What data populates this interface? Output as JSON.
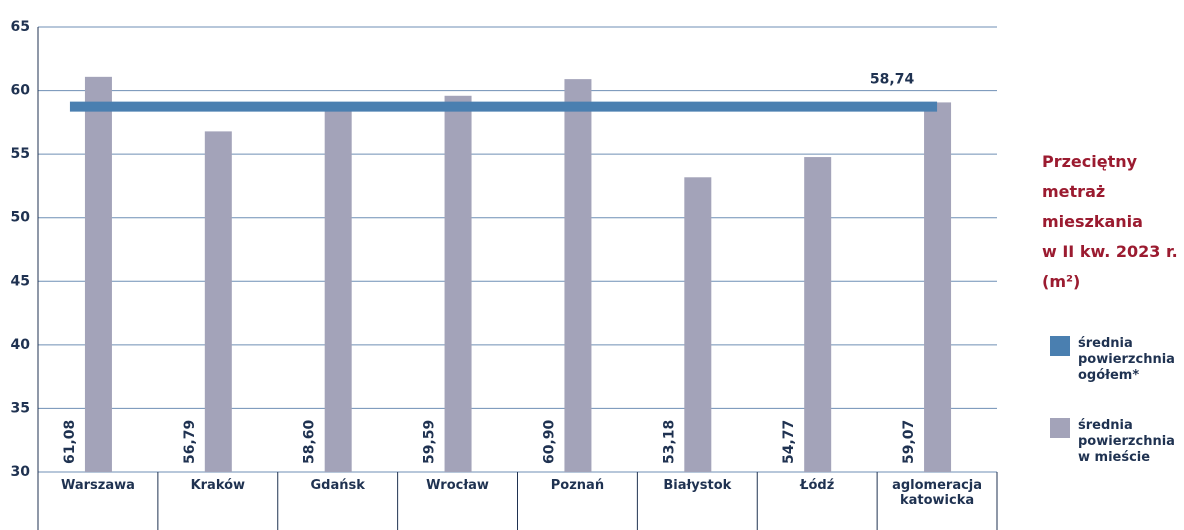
{
  "chart_data": {
    "type": "bar",
    "title_lines": [
      "Przeciętny",
      "metraż",
      "mieszkania",
      "w II kw. 2023 r.",
      "(m²)"
    ],
    "categories": [
      "Warszawa",
      "Kraków",
      "Gdańsk",
      "Wrocław",
      "Poznań",
      "Białystok",
      "Łódź",
      "aglomeracja katowicka"
    ],
    "series": [
      {
        "name": "średnia powierzchnia w mieście",
        "color": "#a3a3b9",
        "values": [
          61.08,
          56.79,
          58.6,
          59.59,
          60.9,
          53.18,
          54.77,
          59.07
        ],
        "value_labels": [
          "61,08",
          "56,79",
          "58,60",
          "59,59",
          "60,90",
          "53,18",
          "54,77",
          "59,07"
        ]
      },
      {
        "name": "średnia powierzchnia ogółem*",
        "color": "#4a7fb0",
        "type": "line",
        "value": 58.74,
        "value_label": "58,74"
      }
    ],
    "ylim": [
      30,
      65
    ],
    "yticks": [
      30,
      35,
      40,
      45,
      50,
      55,
      60,
      65
    ],
    "grid": true
  }
}
